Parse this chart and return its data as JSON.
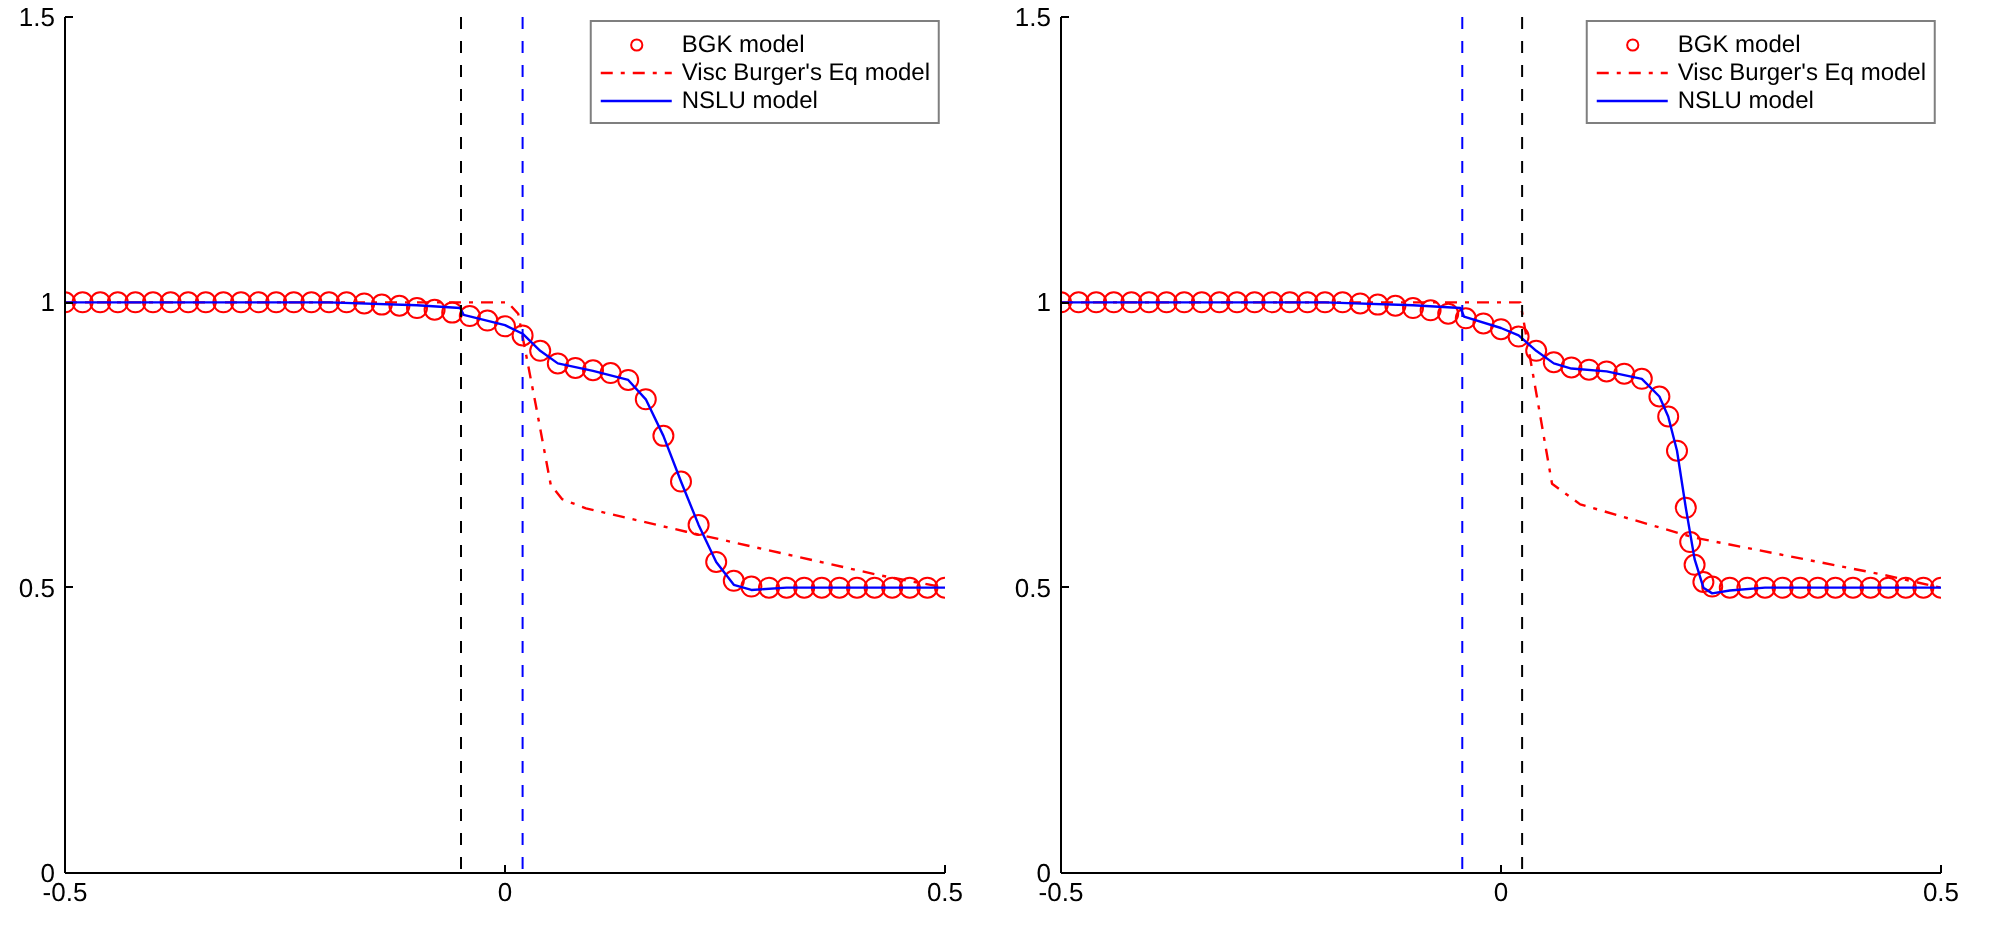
{
  "chart_data": [
    {
      "type": "line",
      "xlim": [
        -0.5,
        0.5
      ],
      "ylim": [
        0,
        1.5
      ],
      "xticks": [
        -0.5,
        0,
        0.5
      ],
      "yticks": [
        0,
        0.5,
        1,
        1.5
      ],
      "grid": false,
      "legend": "top right",
      "series": [
        {
          "name": "BGK model",
          "type": "scatter",
          "marker": "circle",
          "color": "#ff0000",
          "x": [
            -0.5,
            -0.48,
            -0.46,
            -0.44,
            -0.42,
            -0.4,
            -0.38,
            -0.36,
            -0.34,
            -0.32,
            -0.3,
            -0.28,
            -0.26,
            -0.24,
            -0.22,
            -0.2,
            -0.18,
            -0.16,
            -0.14,
            -0.12,
            -0.1,
            -0.08,
            -0.06,
            -0.04,
            -0.02,
            0.0,
            0.02,
            0.04,
            0.06,
            0.08,
            0.1,
            0.12,
            0.14,
            0.16,
            0.18,
            0.2,
            0.22,
            0.24,
            0.26,
            0.28,
            0.3,
            0.32,
            0.34,
            0.36,
            0.38,
            0.4,
            0.42,
            0.44,
            0.46,
            0.48,
            0.5
          ],
          "values": [
            1,
            1,
            1,
            1,
            1,
            1,
            1,
            1,
            1,
            1,
            1,
            1,
            1,
            1,
            1,
            1,
            1,
            0.998,
            0.996,
            0.994,
            0.99,
            0.987,
            0.982,
            0.976,
            0.968,
            0.958,
            0.942,
            0.915,
            0.893,
            0.885,
            0.881,
            0.876,
            0.864,
            0.83,
            0.766,
            0.686,
            0.61,
            0.545,
            0.512,
            0.502,
            0.5,
            0.5,
            0.5,
            0.5,
            0.5,
            0.5,
            0.5,
            0.5,
            0.5,
            0.5,
            0.5
          ]
        },
        {
          "name": "Visc Burger's Eq model",
          "line_style": "dashdot",
          "color": "#ff0000",
          "x": [
            -0.5,
            0.0,
            0.003,
            0.015,
            0.035,
            0.052,
            0.065,
            0.092,
            0.206,
            0.425,
            0.5
          ],
          "values": [
            1,
            1,
            1,
            0.98,
            0.82,
            0.68,
            0.655,
            0.639,
            0.598,
            0.522,
            0.5
          ]
        },
        {
          "name": "NSLU model",
          "line_style": "solid",
          "color": "#0000ff",
          "x": [
            -0.5,
            -0.2,
            -0.1,
            -0.051,
            -0.047,
            0.0,
            0.02,
            0.04,
            0.06,
            0.1,
            0.14,
            0.16,
            0.18,
            0.2,
            0.22,
            0.24,
            0.26,
            0.28,
            0.32,
            0.5
          ],
          "values": [
            1,
            1,
            0.995,
            0.99,
            0.978,
            0.96,
            0.945,
            0.915,
            0.893,
            0.88,
            0.864,
            0.83,
            0.766,
            0.686,
            0.61,
            0.545,
            0.505,
            0.496,
            0.5,
            0.5
          ]
        }
      ],
      "ref_lines": [
        {
          "axis": "x",
          "value": -0.05,
          "color": "#000000",
          "line_style": "dashed"
        },
        {
          "axis": "x",
          "value": 0.02,
          "color": "#0000ff",
          "line_style": "dashed"
        }
      ]
    },
    {
      "type": "line",
      "xlim": [
        -0.5,
        0.5
      ],
      "ylim": [
        0,
        1.5
      ],
      "xticks": [
        -0.5,
        0,
        0.5
      ],
      "yticks": [
        0,
        0.5,
        1,
        1.5
      ],
      "grid": false,
      "legend": "top right",
      "series": [
        {
          "name": "BGK model",
          "type": "scatter",
          "marker": "circle",
          "color": "#ff0000",
          "x": [
            -0.5,
            -0.48,
            -0.46,
            -0.44,
            -0.42,
            -0.4,
            -0.38,
            -0.36,
            -0.34,
            -0.32,
            -0.3,
            -0.28,
            -0.26,
            -0.24,
            -0.22,
            -0.2,
            -0.18,
            -0.16,
            -0.14,
            -0.12,
            -0.1,
            -0.08,
            -0.06,
            -0.04,
            -0.02,
            0.0,
            0.02,
            0.04,
            0.06,
            0.08,
            0.1,
            0.12,
            0.14,
            0.16,
            0.18,
            0.19,
            0.2,
            0.21,
            0.215,
            0.22,
            0.23,
            0.24,
            0.26,
            0.28,
            0.3,
            0.32,
            0.34,
            0.36,
            0.38,
            0.4,
            0.42,
            0.44,
            0.46,
            0.48,
            0.5
          ],
          "values": [
            1,
            1,
            1,
            1,
            1,
            1,
            1,
            1,
            1,
            1,
            1,
            1,
            1,
            1,
            1,
            1,
            1,
            0.998,
            0.996,
            0.994,
            0.99,
            0.986,
            0.98,
            0.972,
            0.963,
            0.953,
            0.94,
            0.915,
            0.895,
            0.886,
            0.882,
            0.879,
            0.875,
            0.866,
            0.835,
            0.8,
            0.74,
            0.64,
            0.58,
            0.54,
            0.51,
            0.502,
            0.5,
            0.5,
            0.5,
            0.5,
            0.5,
            0.5,
            0.5,
            0.5,
            0.5,
            0.5,
            0.5,
            0.5,
            0.5
          ]
        },
        {
          "name": "Visc Burger's Eq model",
          "line_style": "dashdot",
          "color": "#ff0000",
          "x": [
            -0.5,
            0.0,
            0.022,
            0.041,
            0.058,
            0.09,
            0.219,
            0.43,
            0.5
          ],
          "values": [
            1,
            1,
            1,
            0.833,
            0.682,
            0.646,
            0.588,
            0.524,
            0.5
          ]
        },
        {
          "name": "NSLU model",
          "line_style": "solid",
          "color": "#0000ff",
          "x": [
            -0.5,
            -0.2,
            -0.1,
            -0.046,
            -0.042,
            0.0,
            0.02,
            0.04,
            0.06,
            0.08,
            0.12,
            0.16,
            0.18,
            0.19,
            0.2,
            0.21,
            0.22,
            0.23,
            0.24,
            0.26,
            0.3,
            0.5
          ],
          "values": [
            1,
            1,
            0.995,
            0.99,
            0.975,
            0.955,
            0.942,
            0.915,
            0.893,
            0.884,
            0.879,
            0.866,
            0.835,
            0.8,
            0.74,
            0.64,
            0.55,
            0.5,
            0.49,
            0.495,
            0.5,
            0.5
          ]
        }
      ],
      "ref_lines": [
        {
          "axis": "x",
          "value": -0.044,
          "color": "#0000ff",
          "line_style": "dashed"
        },
        {
          "axis": "x",
          "value": 0.024,
          "color": "#000000",
          "line_style": "dashed"
        }
      ]
    }
  ]
}
